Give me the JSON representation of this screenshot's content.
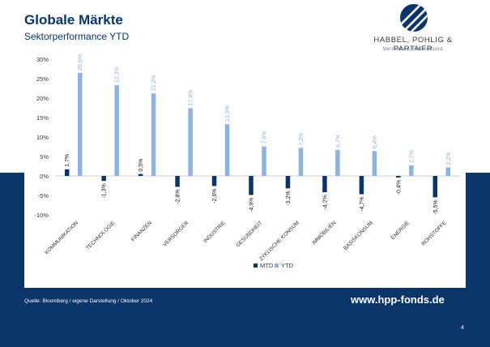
{
  "header": {
    "title": "Globale Märkte",
    "subtitle": "Sektorperformance YTD"
  },
  "logo": {
    "name": "HABBEL, POHLIG & PARTNER",
    "tagline": "Vermögensverwaltung",
    "icon": "stripes-circle-logo"
  },
  "colors": {
    "brand_navy": "#0b3468",
    "mtd": "#0b3468",
    "ytd": "#8fb3e0"
  },
  "chart_data": {
    "type": "bar",
    "categories": [
      "KOMMUNIKATION",
      "TECHNOLOGIE",
      "FINANZEN",
      "VERSORGER",
      "INDUSTRIE",
      "GESUNDHEIT",
      "ZYKLISCHE KONSUM",
      "IMMOBILIEN",
      "BASISKONSUM",
      "ENERGIE",
      "ROHSTOFFE"
    ],
    "series": [
      {
        "name": "MTD",
        "values": [
          1.7,
          -1.3,
          0.5,
          -2.8,
          -2.6,
          -4.9,
          -3.2,
          -4.2,
          -4.7,
          -0.4,
          -5.5
        ],
        "labels": [
          "1,7%",
          "-1,3%",
          "0,5%",
          "-2,8%",
          "-2,6%",
          "-4,9%",
          "-3,2%",
          "-4,2%",
          "-4,7%",
          "-0,4%",
          "-5,5%"
        ]
      },
      {
        "name": "YTD",
        "values": [
          26.5,
          23.3,
          21.2,
          17.4,
          13.3,
          7.6,
          7.2,
          6.7,
          6.4,
          2.7,
          2.2
        ],
        "labels": [
          "26,5%",
          "23,3%",
          "21,2%",
          "17,4%",
          "13,3%",
          "7,6%",
          "7,2%",
          "6,7%",
          "6,4%",
          "2,7%",
          "2,2%"
        ]
      }
    ],
    "ylim": [
      -10,
      30
    ],
    "yticks": [
      30,
      25,
      20,
      15,
      10,
      5,
      0,
      -5,
      -10
    ],
    "ytick_labels": [
      "30%",
      "25%",
      "20%",
      "15%",
      "10%",
      "5%",
      "0%",
      "-5%",
      "-10%"
    ],
    "grid": false,
    "legend_position": "bottom"
  },
  "footer": {
    "source": "Quelle: Bloomberg / eigene Darstellung / Oktober 2024",
    "url": "www.hpp-fonds.de",
    "page_number": "4"
  }
}
